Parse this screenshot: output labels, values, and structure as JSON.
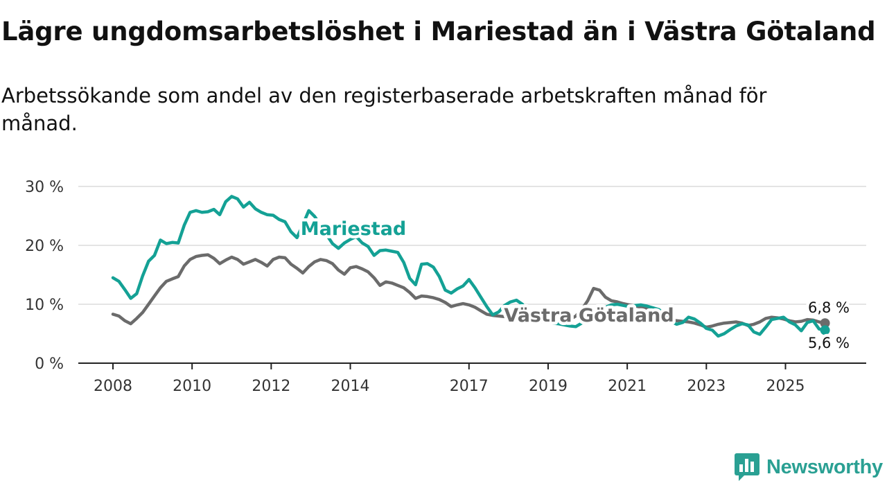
{
  "title": "Lägre ungdomsarbetslöshet i Mariestad än i Västra Götaland",
  "subtitle": "Arbetssökande som andel av den registerbaserade arbetskraften månad för månad.",
  "brand": "Newsworthy",
  "colors": {
    "mariestad": "#14a195",
    "vastra_gotaland": "#6b6b6b",
    "grid": "#dcdcdc",
    "axis": "#222222",
    "brand": "#2aa093"
  },
  "chart_data": {
    "type": "line",
    "title": "Lägre ungdomsarbetslöshet i Mariestad än i Västra Götaland",
    "subtitle": "Arbetssökande som andel av den registerbaserade arbetskraften månad för månad.",
    "xlabel": "",
    "ylabel": "",
    "xlim": [
      2008.0,
      2026.2
    ],
    "ylim": [
      0,
      30
    ],
    "grid": true,
    "x_ticks": [
      2008,
      2010,
      2012,
      2014,
      2017,
      2019,
      2021,
      2023,
      2025
    ],
    "x_tick_labels": [
      "2008",
      "2010",
      "2012",
      "2014",
      "2017",
      "2019",
      "2021",
      "2023",
      "2025"
    ],
    "y_ticks": [
      0,
      10,
      20,
      30
    ],
    "y_tick_labels": [
      "0 %",
      "10 %",
      "20 %",
      "30 %"
    ],
    "series": [
      {
        "name": "Mariestad",
        "label": "Mariestad",
        "end_label": "5,6 %",
        "x": [
          2008.0,
          2008.15,
          2008.3,
          2008.45,
          2008.6,
          2008.75,
          2008.9,
          2009.05,
          2009.2,
          2009.35,
          2009.5,
          2009.65,
          2009.8,
          2009.95,
          2010.1,
          2010.25,
          2010.4,
          2010.55,
          2010.7,
          2010.85,
          2011.0,
          2011.15,
          2011.3,
          2011.45,
          2011.6,
          2011.75,
          2011.9,
          2012.05,
          2012.2,
          2012.35,
          2012.5,
          2012.65,
          2012.8,
          2012.95,
          2013.1,
          2013.25,
          2013.4,
          2013.55,
          2013.7,
          2013.85,
          2014.0,
          2014.15,
          2014.3,
          2014.45,
          2014.6,
          2014.75,
          2014.9,
          2015.05,
          2015.2,
          2015.35,
          2015.5,
          2015.65,
          2015.8,
          2015.95,
          2016.1,
          2016.25,
          2016.4,
          2016.55,
          2016.7,
          2016.85,
          2017.0,
          2017.15,
          2017.3,
          2017.45,
          2017.6,
          2017.75,
          2017.9,
          2018.05,
          2018.2,
          2018.35,
          2018.5,
          2018.65,
          2018.8,
          2018.95,
          2019.1,
          2019.25,
          2019.4,
          2019.55,
          2019.7,
          2019.85,
          2020.0,
          2020.15,
          2020.3,
          2020.45,
          2020.6,
          2020.75,
          2020.9,
          2021.05,
          2021.2,
          2021.35,
          2021.5,
          2021.65,
          2021.8,
          2021.95,
          2022.1,
          2022.25,
          2022.4,
          2022.55,
          2022.7,
          2022.85,
          2023.0,
          2023.15,
          2023.3,
          2023.45,
          2023.6,
          2023.75,
          2023.9,
          2024.05,
          2024.2,
          2024.35,
          2024.5,
          2024.65,
          2024.8,
          2024.95,
          2025.1,
          2025.25,
          2025.4,
          2025.55,
          2025.7,
          2025.85,
          2026.0
        ],
        "values": [
          14.5,
          13.9,
          12.5,
          11.0,
          11.8,
          14.8,
          17.3,
          18.3,
          20.9,
          20.3,
          20.5,
          20.4,
          23.4,
          25.6,
          25.9,
          25.6,
          25.7,
          26.1,
          25.2,
          27.4,
          28.3,
          27.9,
          26.5,
          27.3,
          26.2,
          25.6,
          25.2,
          25.1,
          24.4,
          24.0,
          22.3,
          21.3,
          23.5,
          25.9,
          24.9,
          23.4,
          21.8,
          20.3,
          19.5,
          20.4,
          21.0,
          21.5,
          20.4,
          19.8,
          18.3,
          19.1,
          19.2,
          19.0,
          18.8,
          17.1,
          14.4,
          13.3,
          16.8,
          16.9,
          16.3,
          14.7,
          12.4,
          11.9,
          12.6,
          13.1,
          14.2,
          12.8,
          11.2,
          9.6,
          8.2,
          8.7,
          9.8,
          10.4,
          10.7,
          10.0,
          8.6,
          8.2,
          7.5,
          7.0,
          6.8,
          6.7,
          6.5,
          6.3,
          6.2,
          6.8,
          7.5,
          8.1,
          8.9,
          9.5,
          9.9,
          10.0,
          9.8,
          9.6,
          9.8,
          9.9,
          9.7,
          9.4,
          9.1,
          8.2,
          7.1,
          6.6,
          6.9,
          7.8,
          7.5,
          6.8,
          5.9,
          5.6,
          4.6,
          5.0,
          5.7,
          6.3,
          6.7,
          6.5,
          5.3,
          4.9,
          6.1,
          7.4,
          7.6,
          7.8,
          7.0,
          6.5,
          5.5,
          6.9,
          7.2,
          5.8,
          5.6
        ]
      },
      {
        "name": "Västra Götaland",
        "label": "Västra Götaland",
        "end_label": "6,8 %",
        "x": [
          2008.0,
          2008.15,
          2008.3,
          2008.45,
          2008.6,
          2008.75,
          2008.9,
          2009.05,
          2009.2,
          2009.35,
          2009.5,
          2009.65,
          2009.8,
          2009.95,
          2010.1,
          2010.25,
          2010.4,
          2010.55,
          2010.7,
          2010.85,
          2011.0,
          2011.15,
          2011.3,
          2011.45,
          2011.6,
          2011.75,
          2011.9,
          2012.05,
          2012.2,
          2012.35,
          2012.5,
          2012.65,
          2012.8,
          2012.95,
          2013.1,
          2013.25,
          2013.4,
          2013.55,
          2013.7,
          2013.85,
          2014.0,
          2014.15,
          2014.3,
          2014.45,
          2014.6,
          2014.75,
          2014.9,
          2015.05,
          2015.2,
          2015.35,
          2015.5,
          2015.65,
          2015.8,
          2015.95,
          2016.1,
          2016.25,
          2016.4,
          2016.55,
          2016.7,
          2016.85,
          2017.0,
          2017.15,
          2017.3,
          2017.45,
          2017.6,
          2017.75,
          2017.9,
          2018.05,
          2018.2,
          2018.35,
          2018.5,
          2018.65,
          2018.8,
          2018.95,
          2019.1,
          2019.25,
          2019.4,
          2019.55,
          2019.7,
          2019.85,
          2020.0,
          2020.15,
          2020.3,
          2020.45,
          2020.6,
          2020.75,
          2020.9,
          2021.05,
          2021.2,
          2021.35,
          2021.5,
          2021.65,
          2021.8,
          2021.95,
          2022.1,
          2022.25,
          2022.4,
          2022.55,
          2022.7,
          2022.85,
          2023.0,
          2023.15,
          2023.3,
          2023.45,
          2023.6,
          2023.75,
          2023.9,
          2024.05,
          2024.2,
          2024.35,
          2024.5,
          2024.65,
          2024.8,
          2024.95,
          2025.1,
          2025.25,
          2025.4,
          2025.55,
          2025.7,
          2025.85,
          2026.0
        ],
        "values": [
          8.3,
          8.0,
          7.2,
          6.7,
          7.6,
          8.6,
          10.0,
          11.4,
          12.8,
          13.9,
          14.3,
          14.7,
          16.5,
          17.6,
          18.1,
          18.3,
          18.4,
          17.8,
          16.9,
          17.5,
          18.0,
          17.6,
          16.8,
          17.2,
          17.6,
          17.1,
          16.5,
          17.6,
          18.0,
          17.9,
          16.8,
          16.1,
          15.3,
          16.4,
          17.2,
          17.6,
          17.4,
          16.9,
          15.8,
          15.1,
          16.2,
          16.4,
          16.0,
          15.5,
          14.5,
          13.2,
          13.8,
          13.6,
          13.2,
          12.8,
          12.0,
          11.0,
          11.4,
          11.3,
          11.1,
          10.8,
          10.3,
          9.6,
          9.9,
          10.1,
          9.9,
          9.5,
          8.9,
          8.3,
          8.1,
          8.0,
          7.9,
          7.8,
          7.6,
          7.5,
          7.4,
          7.2,
          7.1,
          7.0,
          7.0,
          7.1,
          7.0,
          7.4,
          8.0,
          9.1,
          10.6,
          12.7,
          12.4,
          11.2,
          10.6,
          10.4,
          10.1,
          9.9,
          9.7,
          9.5,
          9.2,
          8.7,
          8.1,
          7.6,
          7.3,
          7.2,
          7.1,
          7.0,
          6.8,
          6.5,
          6.1,
          6.3,
          6.6,
          6.8,
          6.9,
          7.0,
          6.8,
          6.4,
          6.6,
          7.0,
          7.6,
          7.8,
          7.7,
          7.5,
          7.2,
          7.0,
          7.1,
          7.4,
          7.3,
          7.0,
          6.8
        ]
      }
    ]
  }
}
